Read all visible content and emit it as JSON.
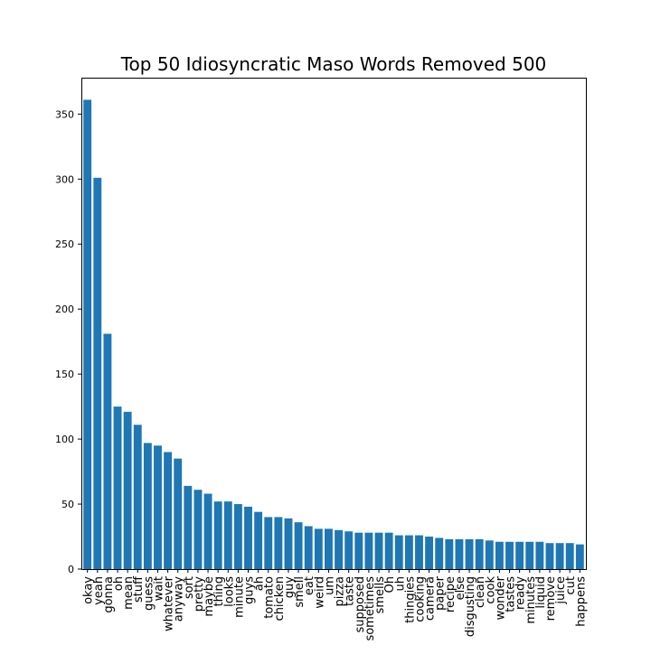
{
  "chart_data": {
    "type": "bar",
    "title": "Top 50 Idiosyncratic Maso Words Removed 500",
    "xlabel": "",
    "ylabel": "",
    "ylim": [
      0,
      378
    ],
    "yticks": [
      0,
      50,
      100,
      150,
      200,
      250,
      300,
      350
    ],
    "grid": false,
    "bar_color": "#1f77b4",
    "categories": [
      "okay",
      "yeah",
      "gonna",
      "oh",
      "mean",
      "stuff",
      "guess",
      "wait",
      "whatever",
      "anyway",
      "sort",
      "pretty",
      "maybe",
      "thing",
      "looks",
      "minute",
      "guys",
      "ah",
      "tomato",
      "chicken",
      "guy",
      "smell",
      "eat",
      "weird",
      "um",
      "pizza",
      "taste",
      "supposed",
      "sometimes",
      "smells",
      "Oh",
      "uh",
      "thingies",
      "cooking",
      "camera",
      "paper",
      "recipe",
      "else",
      "disgusting",
      "clean",
      "cook",
      "wonder",
      "tastes",
      "ready",
      "minutes",
      "liquid",
      "remove",
      "juice",
      "cut",
      "happens"
    ],
    "values": [
      361,
      301,
      181,
      125,
      121,
      111,
      97,
      95,
      90,
      85,
      64,
      61,
      58,
      52,
      52,
      50,
      48,
      44,
      40,
      40,
      39,
      36,
      33,
      31,
      31,
      30,
      29,
      28,
      28,
      28,
      28,
      26,
      26,
      26,
      25,
      24,
      23,
      23,
      23,
      23,
      22,
      21,
      21,
      21,
      21,
      21,
      20,
      20,
      20,
      19
    ]
  }
}
